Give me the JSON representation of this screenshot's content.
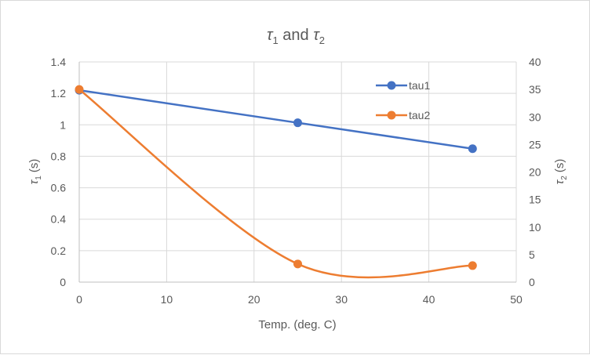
{
  "chart_data": {
    "type": "line",
    "title": "τ1 and τ2",
    "title_parts": {
      "base1": "τ",
      "sub1": "1",
      "mid": " and ",
      "base2": "τ",
      "sub2": "2"
    },
    "xlabel": "Temp. (deg. C)",
    "ylabel_left": {
      "base": "τ",
      "sub": "1",
      "unit": " (s)"
    },
    "ylabel_right": {
      "base": "τ",
      "sub": "2",
      "unit": " (s)"
    },
    "xlim": [
      0,
      50
    ],
    "ylim_left": [
      0,
      1.4
    ],
    "ylim_right": [
      0,
      40
    ],
    "x_ticks": [
      "0",
      "10",
      "20",
      "30",
      "40",
      "50"
    ],
    "y_left_ticks": [
      "0",
      "0.2",
      "0.4",
      "0.6",
      "0.8",
      "1",
      "1.2",
      "1.4"
    ],
    "y_right_ticks": [
      "0",
      "5",
      "10",
      "15",
      "20",
      "25",
      "30",
      "35",
      "40"
    ],
    "grid": true,
    "legend_position": "top-right",
    "series": [
      {
        "name": "tau1",
        "axis": "left",
        "color": "#4472C4",
        "smooth": false,
        "x": [
          0,
          25,
          45
        ],
        "y": [
          1.22,
          1.013,
          0.848
        ]
      },
      {
        "name": "tau2",
        "axis": "right",
        "color": "#ED7D31",
        "smooth": true,
        "x": [
          0,
          25,
          45
        ],
        "y": [
          35.0,
          3.3,
          3.0
        ]
      }
    ]
  }
}
